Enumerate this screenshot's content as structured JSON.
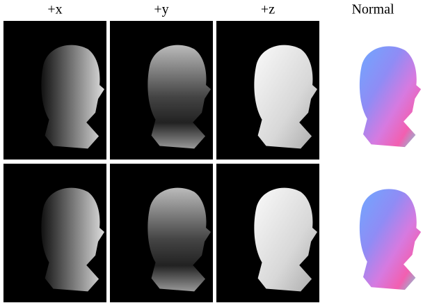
{
  "columns": [
    "+x",
    "+y",
    "+z",
    "Normal"
  ]
}
